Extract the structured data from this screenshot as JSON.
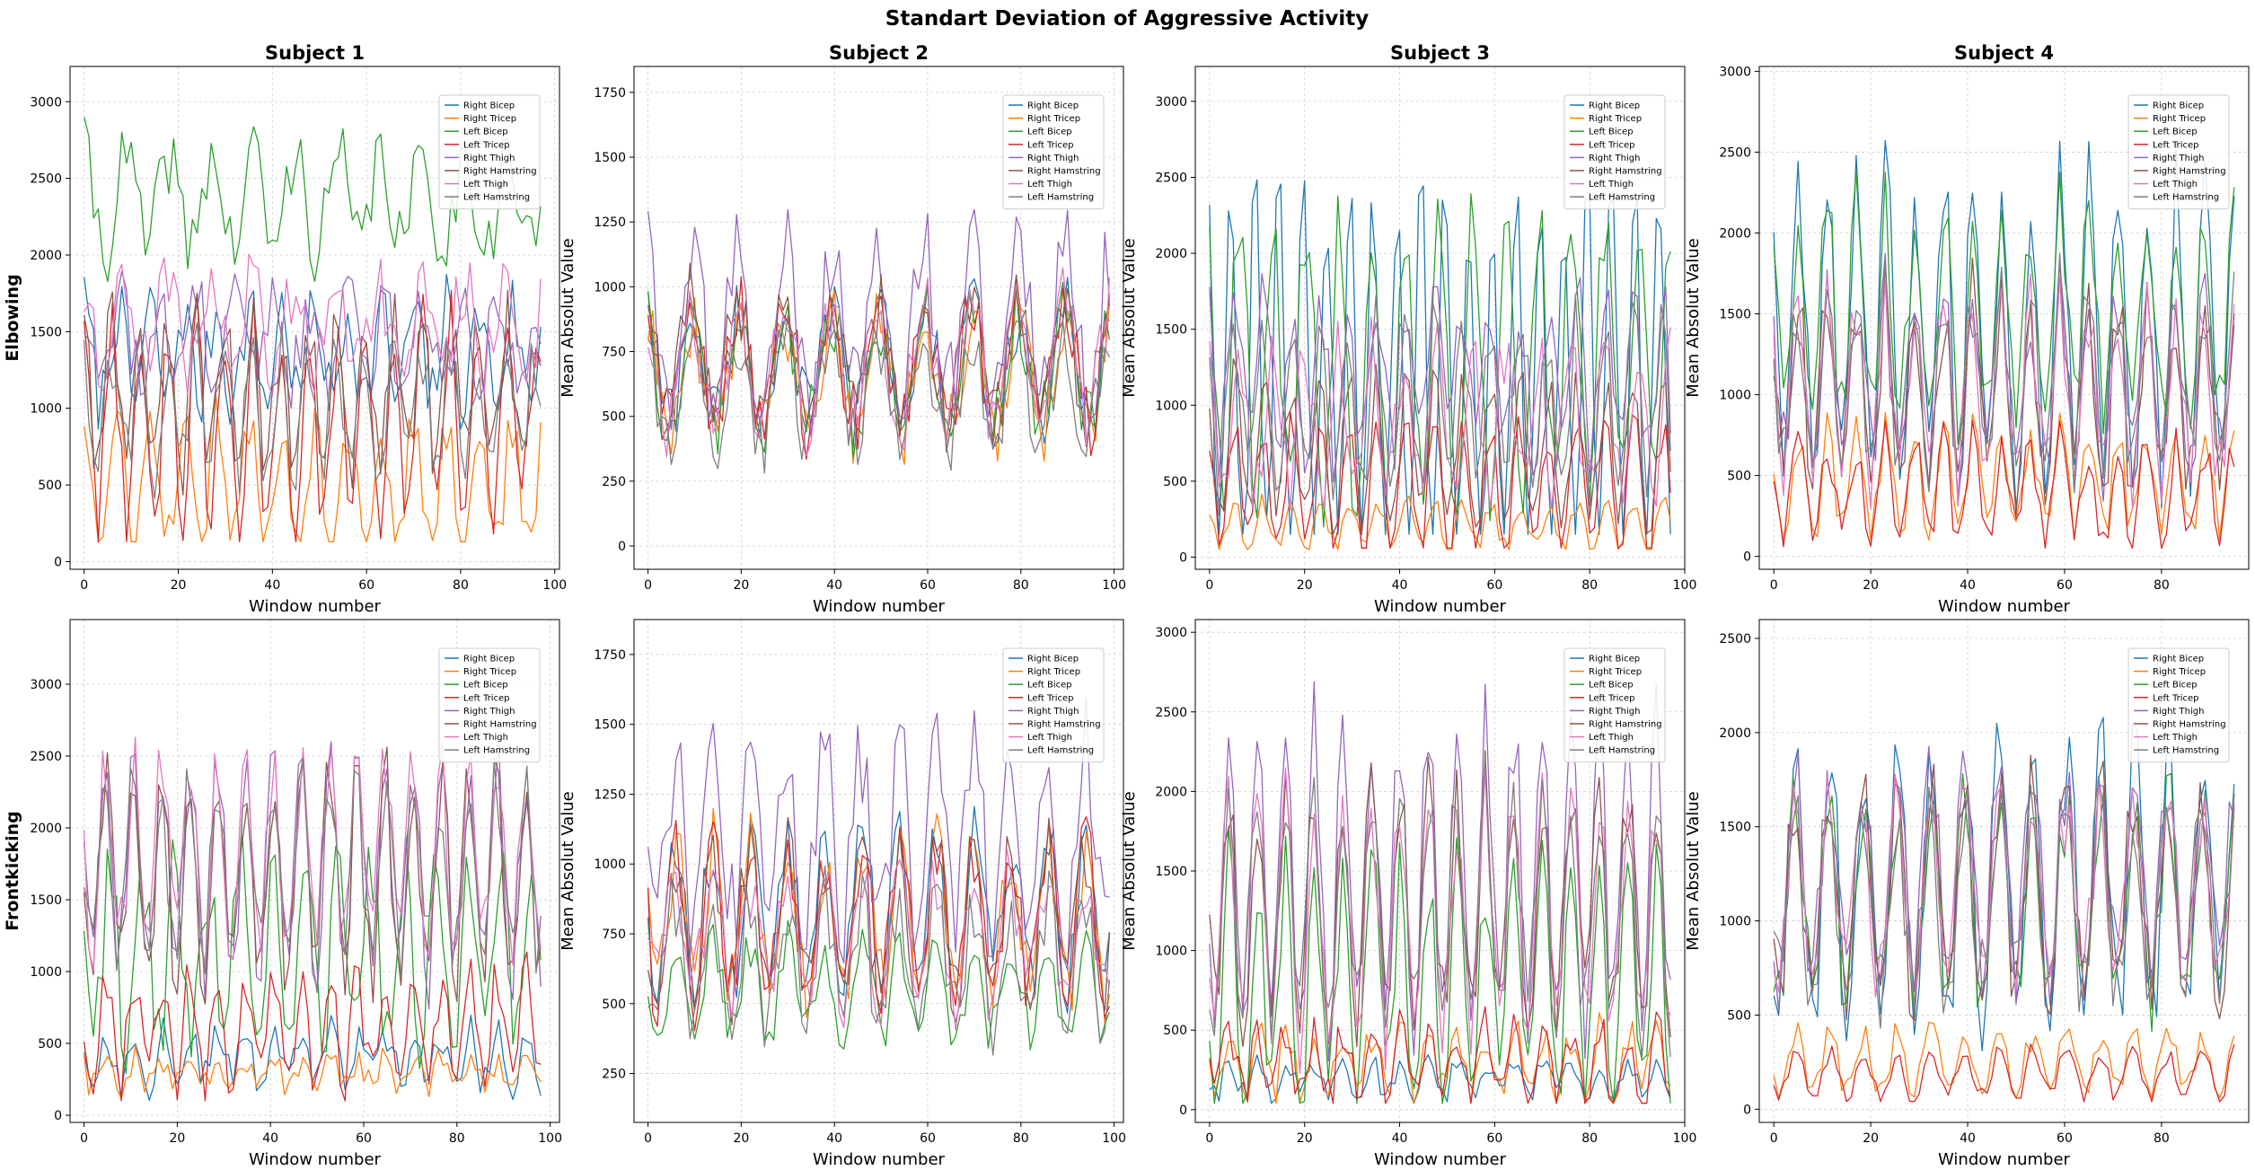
{
  "figure_title": "Standart Deviation of Aggressive Activity",
  "colors": {
    "Right Bicep": "#1f77b4",
    "Right Tricep": "#ff7f0e",
    "Left Bicep": "#2ca02c",
    "Left Tricep": "#d62728",
    "Right Thigh": "#9467bd",
    "Right Hamstring": "#8c564b",
    "Left Thigh": "#e377c2",
    "Left Hamstring": "#7f7f7f"
  },
  "chart_data": [
    {
      "type": "line",
      "row": 0,
      "col": 0,
      "title": "Subject 1",
      "row_label": "Elbowing",
      "xlabel": "Window number",
      "ylabel": "",
      "xlim": [
        -3,
        101
      ],
      "ylim": [
        -50,
        3230
      ],
      "n_points": 98,
      "xticks": [
        0,
        20,
        40,
        60,
        80,
        100
      ],
      "yticks": [
        0,
        500,
        1000,
        1500,
        2000,
        2500,
        3000
      ],
      "grid": true,
      "legend_position": "upper-right",
      "series": [
        {
          "name": "Right Bicep",
          "base": 1350,
          "amp": 300,
          "period": 7,
          "noise": 250,
          "min": 300,
          "max": 2250
        },
        {
          "name": "Right Tricep",
          "base": 500,
          "amp": 400,
          "period": 7,
          "noise": 200,
          "min": 130,
          "max": 2200
        },
        {
          "name": "Left Bicep",
          "base": 2350,
          "amp": 300,
          "period": 9,
          "noise": 250,
          "min": 1200,
          "max": 3080
        },
        {
          "name": "Left Tricep",
          "base": 900,
          "amp": 650,
          "period": 6,
          "noise": 250,
          "min": 130,
          "max": 2100
        },
        {
          "name": "Right Thigh",
          "base": 1450,
          "amp": 250,
          "period": 8,
          "noise": 250,
          "min": 700,
          "max": 2600
        },
        {
          "name": "Right Hamstring",
          "base": 1100,
          "amp": 450,
          "period": 6,
          "noise": 250,
          "min": 350,
          "max": 2100
        },
        {
          "name": "Left Thigh",
          "base": 1550,
          "amp": 250,
          "period": 9,
          "noise": 250,
          "min": 900,
          "max": 2450
        },
        {
          "name": "Left Hamstring",
          "base": 1000,
          "amp": 350,
          "period": 6,
          "noise": 250,
          "min": 400,
          "max": 2100
        }
      ]
    },
    {
      "type": "line",
      "row": 0,
      "col": 1,
      "title": "Subject 2",
      "row_label": "",
      "xlabel": "Window number",
      "ylabel": "Mean Absolut Value",
      "xlim": [
        -3,
        102
      ],
      "ylim": [
        -90,
        1850
      ],
      "n_points": 100,
      "xticks": [
        0,
        20,
        40,
        60,
        80,
        100
      ],
      "yticks": [
        0,
        250,
        500,
        750,
        1000,
        1250,
        1500,
        1750
      ],
      "grid": true,
      "legend_position": "upper-right",
      "series": [
        {
          "name": "Right Bicep",
          "base": 700,
          "amp": 200,
          "period": 10,
          "noise": 150,
          "min": 100,
          "max": 1600
        },
        {
          "name": "Right Tricep",
          "base": 650,
          "amp": 200,
          "period": 10,
          "noise": 150,
          "min": 100,
          "max": 1300
        },
        {
          "name": "Left Bicep",
          "base": 680,
          "amp": 200,
          "period": 10,
          "noise": 150,
          "min": 80,
          "max": 1200
        },
        {
          "name": "Left Tricep",
          "base": 700,
          "amp": 230,
          "period": 10,
          "noise": 150,
          "min": 100,
          "max": 1350
        },
        {
          "name": "Right Thigh",
          "base": 850,
          "amp": 280,
          "period": 10,
          "noise": 200,
          "min": 150,
          "max": 1600
        },
        {
          "name": "Right Hamstring",
          "base": 720,
          "amp": 230,
          "period": 10,
          "noise": 150,
          "min": 80,
          "max": 1650
        },
        {
          "name": "Left Thigh",
          "base": 700,
          "amp": 230,
          "period": 10,
          "noise": 150,
          "min": 100,
          "max": 1400
        },
        {
          "name": "Left Hamstring",
          "base": 600,
          "amp": 200,
          "period": 10,
          "noise": 150,
          "min": 20,
          "max": 1200
        }
      ]
    },
    {
      "type": "line",
      "row": 0,
      "col": 2,
      "title": "Subject 3",
      "row_label": "",
      "xlabel": "Window number",
      "ylabel": "Mean Absolut Value",
      "xlim": [
        -3,
        100
      ],
      "ylim": [
        -80,
        3230
      ],
      "n_points": 98,
      "xticks": [
        0,
        20,
        40,
        60,
        80,
        100
      ],
      "yticks": [
        0,
        500,
        1000,
        1500,
        2000,
        2500,
        3000
      ],
      "grid": true,
      "legend_position": "upper-right",
      "series": [
        {
          "name": "Right Bicep",
          "base": 1200,
          "amp": 1200,
          "period": 5,
          "noise": 300,
          "min": 150,
          "max": 3080
        },
        {
          "name": "Right Tricep",
          "base": 200,
          "amp": 150,
          "period": 6,
          "noise": 80,
          "min": 50,
          "max": 700
        },
        {
          "name": "Left Bicep",
          "base": 1300,
          "amp": 900,
          "period": 7,
          "noise": 300,
          "min": 150,
          "max": 2900
        },
        {
          "name": "Left Tricep",
          "base": 450,
          "amp": 400,
          "period": 6,
          "noise": 150,
          "min": 60,
          "max": 1450
        },
        {
          "name": "Right Thigh",
          "base": 1200,
          "amp": 500,
          "period": 6,
          "noise": 300,
          "min": 300,
          "max": 2100
        },
        {
          "name": "Right Hamstring",
          "base": 700,
          "amp": 450,
          "period": 6,
          "noise": 200,
          "min": 150,
          "max": 1800
        },
        {
          "name": "Left Thigh",
          "base": 900,
          "amp": 450,
          "period": 7,
          "noise": 250,
          "min": 200,
          "max": 2200
        },
        {
          "name": "Left Hamstring",
          "base": 1000,
          "amp": 500,
          "period": 6,
          "noise": 250,
          "min": 250,
          "max": 2400
        }
      ]
    },
    {
      "type": "line",
      "row": 0,
      "col": 3,
      "title": "Subject 4",
      "row_label": "",
      "xlabel": "Window number",
      "ylabel": "Mean Absolut Value",
      "xlim": [
        -3,
        98
      ],
      "ylim": [
        -80,
        3030
      ],
      "n_points": 96,
      "xticks": [
        0,
        20,
        40,
        60,
        80
      ],
      "yticks": [
        0,
        500,
        1000,
        1500,
        2000,
        2500,
        3000
      ],
      "grid": true,
      "legend_position": "upper-right",
      "series": [
        {
          "name": "Right Bicep",
          "base": 1400,
          "amp": 900,
          "period": 6,
          "noise": 300,
          "min": 300,
          "max": 2880
        },
        {
          "name": "Right Tricep",
          "base": 450,
          "amp": 300,
          "period": 6,
          "noise": 150,
          "min": 100,
          "max": 1300
        },
        {
          "name": "Left Bicep",
          "base": 1500,
          "amp": 600,
          "period": 6,
          "noise": 300,
          "min": 300,
          "max": 2600
        },
        {
          "name": "Left Tricep",
          "base": 400,
          "amp": 300,
          "period": 6,
          "noise": 150,
          "min": 50,
          "max": 2300
        },
        {
          "name": "Right Thigh",
          "base": 1100,
          "amp": 500,
          "period": 6,
          "noise": 300,
          "min": 150,
          "max": 2450
        },
        {
          "name": "Right Hamstring",
          "base": 1000,
          "amp": 550,
          "period": 6,
          "noise": 300,
          "min": 150,
          "max": 2300
        },
        {
          "name": "Left Thigh",
          "base": 1000,
          "amp": 500,
          "period": 6,
          "noise": 250,
          "min": 150,
          "max": 2300
        },
        {
          "name": "Left Hamstring",
          "base": 1100,
          "amp": 500,
          "period": 6,
          "noise": 250,
          "min": 200,
          "max": 2450
        }
      ]
    },
    {
      "type": "line",
      "row": 1,
      "col": 0,
      "title": "",
      "row_label": "Frontkicking",
      "xlabel": "Window number",
      "ylabel": "",
      "xlim": [
        -3,
        102
      ],
      "ylim": [
        -50,
        3450
      ],
      "n_points": 99,
      "xticks": [
        0,
        20,
        40,
        60,
        80,
        100
      ],
      "yticks": [
        0,
        500,
        1000,
        1500,
        2000,
        2500,
        3000
      ],
      "grid": true,
      "legend_position": "upper-right",
      "series": [
        {
          "name": "Right Bicep",
          "base": 400,
          "amp": 150,
          "period": 6,
          "noise": 150,
          "min": 80,
          "max": 1000
        },
        {
          "name": "Right Tricep",
          "base": 300,
          "amp": 100,
          "period": 6,
          "noise": 100,
          "min": 80,
          "max": 700
        },
        {
          "name": "Left Bicep",
          "base": 1100,
          "amp": 600,
          "period": 7,
          "noise": 300,
          "min": 150,
          "max": 2300
        },
        {
          "name": "Left Tricep",
          "base": 600,
          "amp": 350,
          "period": 6,
          "noise": 200,
          "min": 100,
          "max": 1500
        },
        {
          "name": "Right Thigh",
          "base": 1700,
          "amp": 700,
          "period": 6,
          "noise": 300,
          "min": 700,
          "max": 2850
        },
        {
          "name": "Right Hamstring",
          "base": 1650,
          "amp": 700,
          "period": 6,
          "noise": 300,
          "min": 500,
          "max": 3250
        },
        {
          "name": "Left Thigh",
          "base": 1800,
          "amp": 600,
          "period": 6,
          "noise": 300,
          "min": 600,
          "max": 2800
        },
        {
          "name": "Left Hamstring",
          "base": 1700,
          "amp": 600,
          "period": 6,
          "noise": 300,
          "min": 600,
          "max": 2850
        }
      ]
    },
    {
      "type": "line",
      "row": 1,
      "col": 1,
      "title": "",
      "row_label": "",
      "xlabel": "Window number",
      "ylabel": "Mean Absolut Value",
      "xlim": [
        -3,
        102
      ],
      "ylim": [
        75,
        1875
      ],
      "n_points": 100,
      "xticks": [
        0,
        20,
        40,
        60,
        80,
        100
      ],
      "yticks": [
        250,
        500,
        750,
        1000,
        1250,
        1500,
        1750
      ],
      "grid": true,
      "legend_position": "upper-right",
      "series": [
        {
          "name": "Right Bicep",
          "base": 850,
          "amp": 250,
          "period": 8,
          "noise": 150,
          "min": 250,
          "max": 1500
        },
        {
          "name": "Right Tricep",
          "base": 800,
          "amp": 250,
          "period": 8,
          "noise": 150,
          "min": 300,
          "max": 1450
        },
        {
          "name": "Left Bicep",
          "base": 550,
          "amp": 150,
          "period": 8,
          "noise": 100,
          "min": 200,
          "max": 1050
        },
        {
          "name": "Left Tricep",
          "base": 800,
          "amp": 250,
          "period": 8,
          "noise": 150,
          "min": 300,
          "max": 1780
        },
        {
          "name": "Right Thigh",
          "base": 1100,
          "amp": 300,
          "period": 8,
          "noise": 200,
          "min": 500,
          "max": 1790
        },
        {
          "name": "Right Hamstring",
          "base": 800,
          "amp": 250,
          "period": 8,
          "noise": 150,
          "min": 150,
          "max": 1650
        },
        {
          "name": "Left Thigh",
          "base": 750,
          "amp": 200,
          "period": 8,
          "noise": 150,
          "min": 150,
          "max": 1400
        },
        {
          "name": "Left Hamstring",
          "base": 650,
          "amp": 200,
          "period": 8,
          "noise": 150,
          "min": 120,
          "max": 1450
        }
      ]
    },
    {
      "type": "line",
      "row": 1,
      "col": 2,
      "title": "",
      "row_label": "",
      "xlabel": "Window number",
      "ylabel": "Mean Absolut Value",
      "xlim": [
        -3,
        100
      ],
      "ylim": [
        -80,
        3080
      ],
      "n_points": 98,
      "xticks": [
        0,
        20,
        40,
        60,
        80,
        100
      ],
      "yticks": [
        0,
        500,
        1000,
        1500,
        2000,
        2500,
        3000
      ],
      "grid": true,
      "legend_position": "upper-right",
      "series": [
        {
          "name": "Right Bicep",
          "base": 200,
          "amp": 100,
          "period": 6,
          "noise": 80,
          "min": 40,
          "max": 700
        },
        {
          "name": "Right Tricep",
          "base": 300,
          "amp": 200,
          "period": 6,
          "noise": 150,
          "min": 40,
          "max": 1600
        },
        {
          "name": "Left Bicep",
          "base": 800,
          "amp": 700,
          "period": 6,
          "noise": 300,
          "min": 40,
          "max": 2500
        },
        {
          "name": "Left Tricep",
          "base": 300,
          "amp": 200,
          "period": 6,
          "noise": 150,
          "min": 40,
          "max": 1400
        },
        {
          "name": "Right Thigh",
          "base": 1500,
          "amp": 900,
          "period": 6,
          "noise": 300,
          "min": 300,
          "max": 2960
        },
        {
          "name": "Right Hamstring",
          "base": 1300,
          "amp": 700,
          "period": 6,
          "noise": 300,
          "min": 200,
          "max": 2400
        },
        {
          "name": "Left Thigh",
          "base": 1200,
          "amp": 700,
          "period": 6,
          "noise": 300,
          "min": 100,
          "max": 2400
        },
        {
          "name": "Left Hamstring",
          "base": 1300,
          "amp": 700,
          "period": 6,
          "noise": 300,
          "min": 100,
          "max": 2400
        }
      ]
    },
    {
      "type": "line",
      "row": 1,
      "col": 3,
      "title": "",
      "row_label": "",
      "xlabel": "Window number",
      "ylabel": "Mean Absolut Value",
      "xlim": [
        -3,
        98
      ],
      "ylim": [
        -70,
        2600
      ],
      "n_points": 96,
      "xticks": [
        0,
        20,
        40,
        60,
        80
      ],
      "yticks": [
        0,
        500,
        1000,
        1500,
        2000,
        2500
      ],
      "grid": true,
      "legend_position": "upper-right",
      "series": [
        {
          "name": "Right Bicep",
          "base": 1200,
          "amp": 700,
          "period": 7,
          "noise": 250,
          "min": 300,
          "max": 2430
        },
        {
          "name": "Right Tricep",
          "base": 250,
          "amp": 150,
          "period": 7,
          "noise": 80,
          "min": 60,
          "max": 600
        },
        {
          "name": "Left Bicep",
          "base": 1100,
          "amp": 500,
          "period": 7,
          "noise": 250,
          "min": 300,
          "max": 2430
        },
        {
          "name": "Left Tricep",
          "base": 180,
          "amp": 120,
          "period": 7,
          "noise": 60,
          "min": 40,
          "max": 500
        },
        {
          "name": "Right Thigh",
          "base": 1250,
          "amp": 500,
          "period": 7,
          "noise": 250,
          "min": 400,
          "max": 2250
        },
        {
          "name": "Right Hamstring",
          "base": 1150,
          "amp": 550,
          "period": 7,
          "noise": 250,
          "min": 300,
          "max": 2150
        },
        {
          "name": "Left Thigh",
          "base": 1150,
          "amp": 450,
          "period": 7,
          "noise": 250,
          "min": 300,
          "max": 2100
        },
        {
          "name": "Left Hamstring",
          "base": 1100,
          "amp": 450,
          "period": 7,
          "noise": 250,
          "min": 300,
          "max": 2050
        }
      ]
    }
  ]
}
